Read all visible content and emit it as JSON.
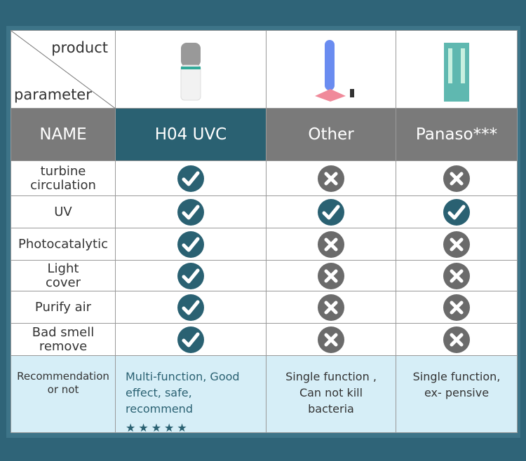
{
  "header": {
    "product": "product",
    "parameter": "parameter",
    "columns": [
      "NAME",
      "H04 UVC",
      "Other",
      "Panaso***"
    ]
  },
  "rows": [
    {
      "label": "turbine circulation",
      "values": [
        true,
        false,
        false
      ]
    },
    {
      "label": "UV",
      "values": [
        true,
        true,
        true
      ]
    },
    {
      "label": "Photocatalytic",
      "values": [
        true,
        false,
        false
      ]
    },
    {
      "label": "Light cover",
      "values": [
        true,
        false,
        false
      ]
    },
    {
      "label": "Purify air",
      "values": [
        true,
        false,
        false
      ]
    },
    {
      "label": "Bad smell remove",
      "values": [
        true,
        false,
        false
      ]
    }
  ],
  "recommendation": {
    "label": "Recommendation or not",
    "texts": [
      "Multi-function, Good effect, safe, recommend",
      "Single function , Can not kill bacteria",
      "Single function, ex- pensive"
    ],
    "rating": 5
  }
}
